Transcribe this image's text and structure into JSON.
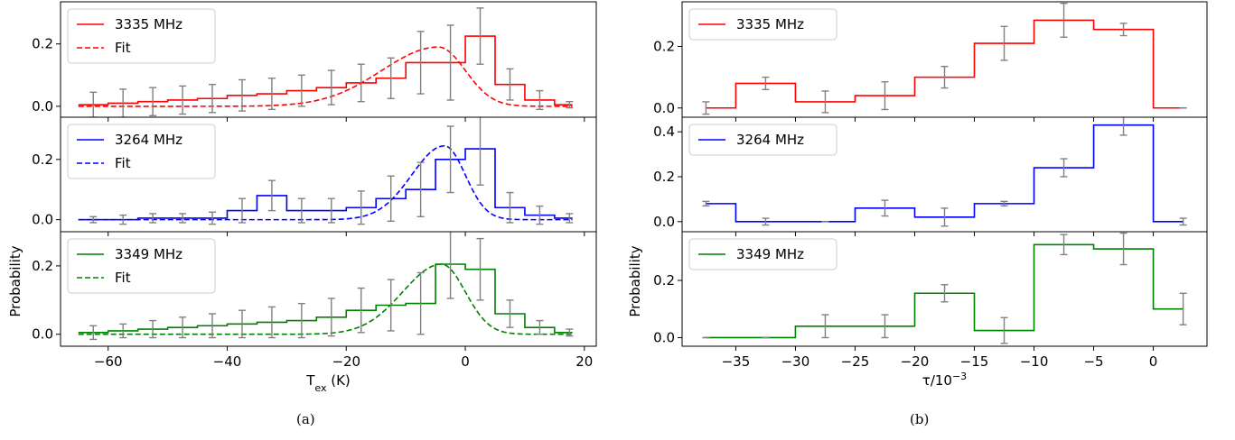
{
  "captions": [
    "(a)",
    "(b)"
  ],
  "chart_data": [
    {
      "type": "line",
      "step": true,
      "panel_label": "(a)",
      "xlabel": "T_ex (K)",
      "xlabel_main": "T",
      "xlabel_sub": "ex",
      "xlabel_unit": " (K)",
      "ylabel": "Probability",
      "xlim": [
        -68,
        22
      ],
      "xticks": [
        -60,
        -40,
        -20,
        0,
        20
      ],
      "xtick_labels": [
        "−60",
        "−40",
        "−20",
        "0",
        "20"
      ],
      "legend_position": "upper-left",
      "error_bar_color": "#808080",
      "x_edges": [
        -65,
        -60,
        -55,
        -50,
        -45,
        -40,
        -35,
        -30,
        -25,
        -20,
        -15,
        -10,
        -5,
        0,
        5,
        10,
        15,
        18
      ],
      "x_points": [
        -62.5,
        -57.5,
        -52.5,
        -47.5,
        -42.5,
        -37.5,
        -32.5,
        -27.5,
        -22.5,
        -17.5,
        -12.5,
        -7.5,
        -2.5,
        2.5,
        7.5,
        12.5,
        17.5
      ],
      "panels": [
        {
          "series": [
            {
              "name": "3335 MHz",
              "color": "#ff0000",
              "values": [
                0.005,
                0.01,
                0.015,
                0.02,
                0.025,
                0.035,
                0.04,
                0.05,
                0.06,
                0.075,
                0.09,
                0.14,
                0.14,
                0.225,
                0.07,
                0.02,
                0.005,
                0.0
              ]
            },
            {
              "name": "Fit",
              "color": "#ff0000",
              "dashed": true,
              "fit": {
                "mu": -4.5,
                "sigma_left": 9.5,
                "sigma_right": 4.5,
                "amp": 0.19
              }
            }
          ],
          "errors": [
            0.04,
            0.045,
            0.045,
            0.045,
            0.045,
            0.05,
            0.05,
            0.05,
            0.055,
            0.06,
            0.065,
            0.1,
            0.12,
            0.09,
            0.05,
            0.03,
            0.01
          ],
          "ylim": [
            -0.035,
            0.335
          ],
          "yticks": [
            0.0,
            0.2
          ],
          "ytick_labels": [
            "0.0",
            "0.2"
          ]
        },
        {
          "series": [
            {
              "name": "3264 MHz",
              "color": "#0000ff",
              "values": [
                0.0,
                0.0,
                0.005,
                0.005,
                0.005,
                0.03,
                0.08,
                0.03,
                0.03,
                0.04,
                0.07,
                0.1,
                0.2,
                0.235,
                0.04,
                0.015,
                0.005,
                0.0
              ]
            },
            {
              "name": "Fit",
              "color": "#0000ff",
              "dashed": true,
              "fit": {
                "mu": -3.5,
                "sigma_left": 5.5,
                "sigma_right": 3.5,
                "amp": 0.245
              }
            }
          ],
          "errors": [
            0.01,
            0.015,
            0.015,
            0.015,
            0.02,
            0.04,
            0.05,
            0.04,
            0.04,
            0.055,
            0.075,
            0.09,
            0.11,
            0.12,
            0.05,
            0.03,
            0.015
          ],
          "ylim": [
            -0.04,
            0.34
          ],
          "yticks": [
            0.0,
            0.2
          ],
          "ytick_labels": [
            "0.0",
            "0.2"
          ]
        },
        {
          "series": [
            {
              "name": "3349 MHz",
              "color": "#008000",
              "values": [
                0.005,
                0.01,
                0.015,
                0.02,
                0.025,
                0.03,
                0.035,
                0.04,
                0.05,
                0.07,
                0.085,
                0.09,
                0.205,
                0.19,
                0.06,
                0.02,
                0.005,
                0.0
              ]
            },
            {
              "name": "Fit",
              "color": "#008000",
              "dashed": true,
              "fit": {
                "mu": -4.0,
                "sigma_left": 6.5,
                "sigma_right": 4.0,
                "amp": 0.205
              }
            }
          ],
          "errors": [
            0.02,
            0.02,
            0.025,
            0.03,
            0.035,
            0.04,
            0.045,
            0.05,
            0.055,
            0.065,
            0.075,
            0.09,
            0.1,
            0.09,
            0.04,
            0.02,
            0.01
          ],
          "ylim": [
            -0.035,
            0.3
          ],
          "yticks": [
            0.0,
            0.2
          ],
          "ytick_labels": [
            "0.0",
            "0.2"
          ]
        }
      ]
    },
    {
      "type": "line",
      "step": true,
      "panel_label": "(b)",
      "xlabel": "τ/10⁻³",
      "xlabel_main": "τ/10",
      "xlabel_sup": "−3",
      "ylabel": "Probability",
      "xlim": [
        -39.5,
        4.5
      ],
      "xticks": [
        -35,
        -30,
        -25,
        -20,
        -15,
        -10,
        -5,
        0
      ],
      "xtick_labels": [
        "−35",
        "−30",
        "−25",
        "−20",
        "−15",
        "−10",
        "−5",
        "0"
      ],
      "legend_position": "upper-left",
      "error_bar_color": "#808080",
      "x_edges": [
        -37.5,
        -35,
        -30,
        -25,
        -20,
        -15,
        -10,
        -5,
        0,
        2.5
      ],
      "x_points": [
        -37.5,
        -32.5,
        -27.5,
        -22.5,
        -17.5,
        -12.5,
        -7.5,
        -2.5,
        2.5
      ],
      "panels": [
        {
          "series": [
            {
              "name": "3335 MHz",
              "color": "#ff0000",
              "values": [
                0.0,
                0.08,
                0.02,
                0.04,
                0.1,
                0.21,
                0.285,
                0.255,
                0.0,
                0.0
              ]
            }
          ],
          "point_values": [
            0.0,
            0.08,
            0.02,
            0.04,
            0.1,
            0.21,
            0.285,
            0.255,
            0.0
          ],
          "errors": [
            0.02,
            0.02,
            0.035,
            0.045,
            0.035,
            0.055,
            0.055,
            0.02,
            0.0
          ],
          "ylim": [
            -0.03,
            0.345
          ],
          "yticks": [
            0.0,
            0.2
          ],
          "ytick_labels": [
            "0.0",
            "0.2"
          ]
        },
        {
          "series": [
            {
              "name": "3264 MHz",
              "color": "#0000ff",
              "values": [
                0.08,
                0.0,
                0.0,
                0.06,
                0.02,
                0.08,
                0.24,
                0.43,
                0.0,
                0.0
              ]
            }
          ],
          "point_values": [
            0.08,
            0.0,
            0.0,
            0.06,
            0.02,
            0.08,
            0.24,
            0.43,
            0.0
          ],
          "errors": [
            0.01,
            0.015,
            0.0,
            0.035,
            0.04,
            0.01,
            0.04,
            0.045,
            0.015
          ],
          "ylim": [
            -0.045,
            0.465
          ],
          "yticks": [
            0.0,
            0.2,
            0.4
          ],
          "ytick_labels": [
            "0.0",
            "0.2",
            "0.4"
          ]
        },
        {
          "series": [
            {
              "name": "3349 MHz",
              "color": "#008000",
              "values": [
                0.0,
                0.0,
                0.04,
                0.04,
                0.155,
                0.025,
                0.325,
                0.31,
                0.1,
                0.1
              ]
            }
          ],
          "point_values": [
            0.0,
            0.0,
            0.04,
            0.04,
            0.155,
            0.025,
            0.325,
            0.31,
            0.1
          ],
          "errors": [
            0.0,
            0.0,
            0.04,
            0.04,
            0.03,
            0.045,
            0.035,
            0.055,
            0.055
          ],
          "ylim": [
            -0.03,
            0.37
          ],
          "yticks": [
            0.0,
            0.2
          ],
          "ytick_labels": [
            "0.0",
            "0.2"
          ]
        }
      ]
    }
  ]
}
